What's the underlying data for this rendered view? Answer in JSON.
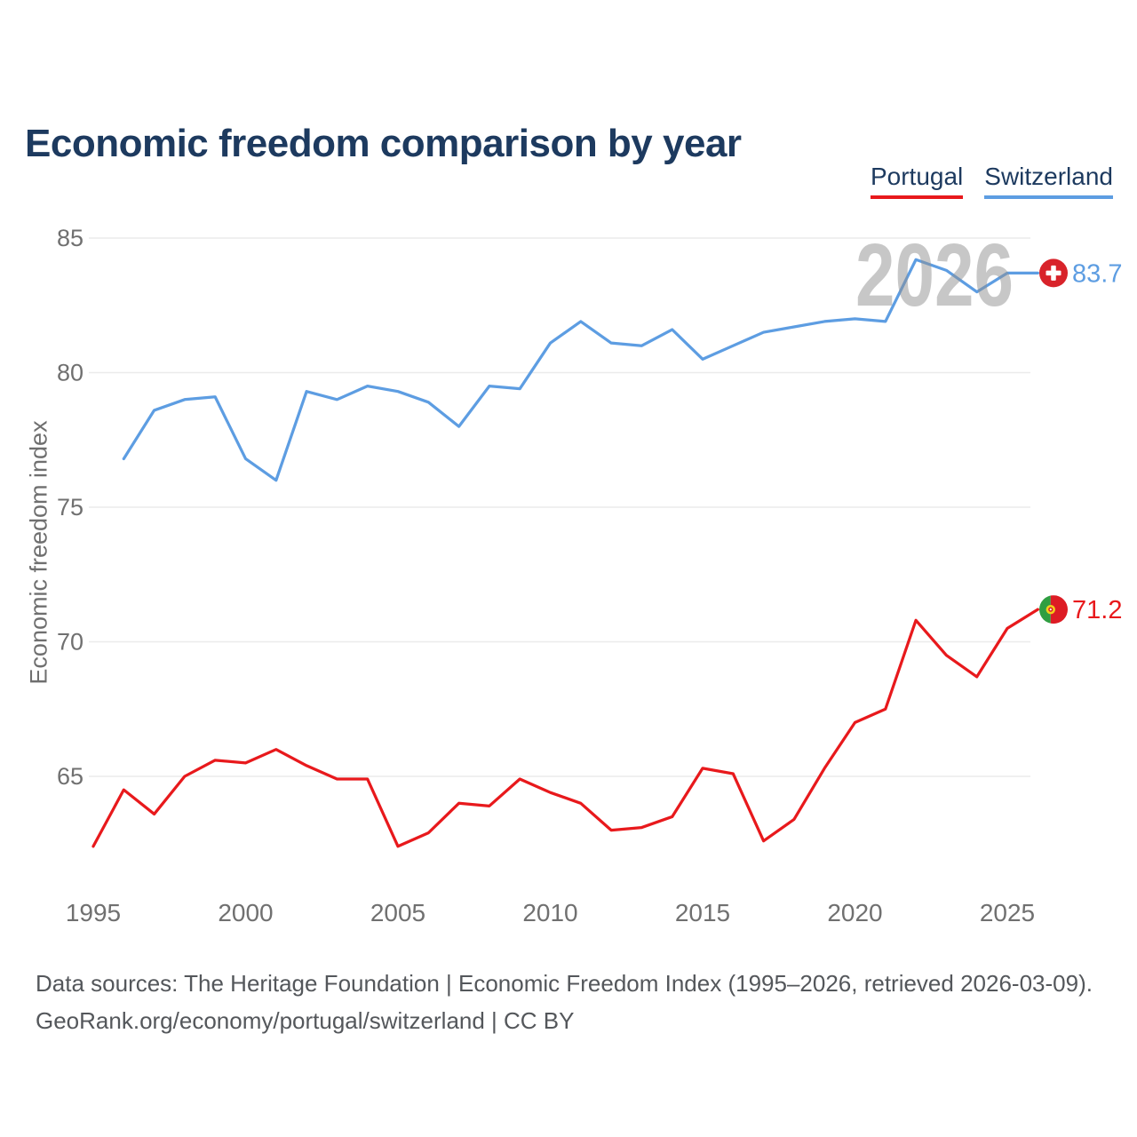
{
  "title": "Economic freedom comparison by year",
  "watermark": "2026",
  "legend": [
    {
      "label": "Portugal",
      "color": "#e8191c"
    },
    {
      "label": "Switzerland",
      "color": "#5d9de2"
    }
  ],
  "y_axis": {
    "label": "Economic freedom index",
    "ticks": [
      65,
      70,
      75,
      80,
      85
    ]
  },
  "x_axis": {
    "ticks": [
      1995,
      2000,
      2005,
      2010,
      2015,
      2020,
      2025
    ]
  },
  "footer": {
    "line1": "Data sources: The Heritage Foundation | Economic Freedom Index (1995–2026, retrieved 2026-03-09).",
    "line2": "GeoRank.org/economy/portugal/switzerland | CC BY"
  },
  "colors": {
    "title_text": "#1d3a5f",
    "grid": "#ebebeb",
    "axis_text": "#707070",
    "watermark": "#8f8f8f",
    "footer_text": "#54575b",
    "swiss_flag_red": "#d8232a",
    "swiss_flag_cross": "#ffffff",
    "portugal_flag_green": "#2f9e41",
    "portugal_flag_red": "#dd1c24",
    "portugal_flag_yellow": "#f2cf1b"
  },
  "chart_data": {
    "type": "line",
    "title": "Economic freedom comparison by year",
    "xlabel": "",
    "ylabel": "Economic freedom index",
    "xlim": [
      1995,
      2026
    ],
    "ylim": [
      61.5,
      86
    ],
    "grid": true,
    "legend_position": "top-right",
    "y_ticks": [
      65,
      70,
      75,
      80,
      85
    ],
    "x_ticks": [
      1995,
      2000,
      2005,
      2010,
      2015,
      2020,
      2025
    ],
    "series": [
      {
        "name": "Portugal",
        "color": "#e8191c",
        "flag": "portugal",
        "end_value_label": "71.2",
        "years": [
          1995,
          1996,
          1997,
          1998,
          1999,
          2000,
          2001,
          2002,
          2003,
          2004,
          2005,
          2006,
          2007,
          2008,
          2009,
          2010,
          2011,
          2012,
          2013,
          2014,
          2015,
          2016,
          2017,
          2018,
          2019,
          2020,
          2021,
          2022,
          2023,
          2024,
          2025,
          2026
        ],
        "values": [
          62.4,
          64.5,
          63.6,
          65.0,
          65.6,
          65.5,
          66.0,
          65.4,
          64.9,
          64.9,
          62.4,
          62.9,
          64.0,
          63.9,
          64.9,
          64.4,
          64.0,
          63.0,
          63.1,
          63.5,
          65.3,
          65.1,
          62.6,
          63.4,
          65.3,
          67.0,
          67.5,
          70.8,
          69.5,
          68.7,
          70.5,
          71.2
        ]
      },
      {
        "name": "Switzerland",
        "color": "#5d9de2",
        "flag": "switzerland",
        "end_value_label": "83.7",
        "years": [
          1996,
          1997,
          1998,
          1999,
          2000,
          2001,
          2002,
          2003,
          2004,
          2005,
          2006,
          2007,
          2008,
          2009,
          2010,
          2011,
          2012,
          2013,
          2014,
          2015,
          2016,
          2017,
          2018,
          2019,
          2020,
          2021,
          2022,
          2023,
          2024,
          2025,
          2026
        ],
        "values": [
          76.8,
          78.6,
          79.0,
          79.1,
          76.8,
          76.0,
          79.3,
          79.0,
          79.5,
          79.3,
          78.9,
          78.0,
          79.5,
          79.4,
          81.1,
          81.9,
          81.1,
          81.0,
          81.6,
          80.5,
          81.0,
          81.5,
          81.7,
          81.9,
          82.0,
          81.9,
          84.2,
          83.8,
          83.0,
          83.7,
          83.7
        ]
      }
    ]
  }
}
